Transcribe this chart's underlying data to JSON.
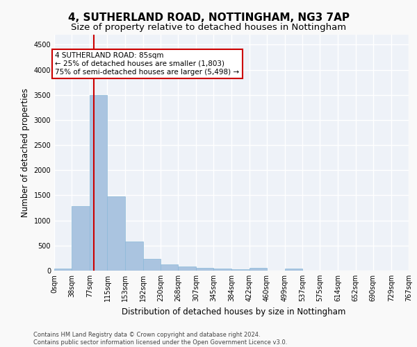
{
  "title1": "4, SUTHERLAND ROAD, NOTTINGHAM, NG3 7AP",
  "title2": "Size of property relative to detached houses in Nottingham",
  "xlabel": "Distribution of detached houses by size in Nottingham",
  "ylabel": "Number of detached properties",
  "bar_color": "#aac4e0",
  "bar_edgecolor": "#8ab8d8",
  "bin_edges": [
    0,
    38,
    77,
    115,
    153,
    192,
    230,
    268,
    307,
    345,
    384,
    422,
    460,
    499,
    537,
    575,
    614,
    652,
    690,
    729,
    767
  ],
  "bar_heights": [
    40,
    1280,
    3500,
    1480,
    580,
    240,
    120,
    85,
    50,
    35,
    30,
    50,
    0,
    40,
    0,
    0,
    0,
    0,
    0,
    0
  ],
  "property_size": 85,
  "red_line_color": "#cc0000",
  "annotation_line1": "4 SUTHERLAND ROAD: 85sqm",
  "annotation_line2": "← 25% of detached houses are smaller (1,803)",
  "annotation_line3": "75% of semi-detached houses are larger (5,498) →",
  "annotation_box_color": "#ffffff",
  "annotation_box_edgecolor": "#cc0000",
  "ylim": [
    0,
    4700
  ],
  "yticks": [
    0,
    500,
    1000,
    1500,
    2000,
    2500,
    3000,
    3500,
    4000,
    4500
  ],
  "footer1": "Contains HM Land Registry data © Crown copyright and database right 2024.",
  "footer2": "Contains public sector information licensed under the Open Government Licence v3.0.",
  "background_color": "#eef2f8",
  "grid_color": "#ffffff",
  "title1_fontsize": 11,
  "title2_fontsize": 9.5,
  "tick_fontsize": 7,
  "ylabel_fontsize": 8.5,
  "xlabel_fontsize": 8.5,
  "annotation_fontsize": 7.5
}
